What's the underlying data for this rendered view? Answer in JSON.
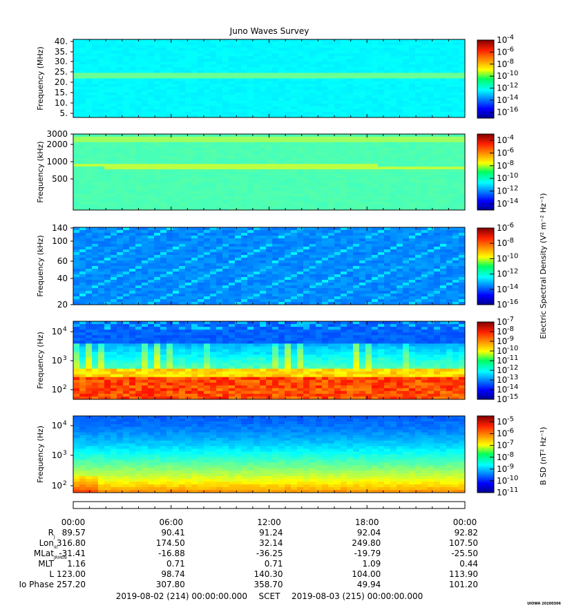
{
  "title": "Juno Waves Survey",
  "watermark": "UIOWA 20200306",
  "chart_data": [
    {
      "type": "heatmap",
      "ylabel": "Frequency (MHz)",
      "ytick_labels": [
        "40.",
        "35.",
        "30.",
        "25.",
        "20.",
        "15.",
        "10.",
        "5."
      ],
      "ylim": [
        3.5,
        41
      ],
      "yscale": "linear",
      "colorbar": {
        "label": "",
        "exponents": [
          "-4",
          "-6",
          "-8",
          "-10",
          "-12",
          "-14",
          "-16"
        ],
        "range_log10": [
          -17,
          -4
        ]
      },
      "feature": "uniform background near 1e-13 with a brighter horizontal band near 21 MHz"
    },
    {
      "type": "heatmap",
      "ylabel": "Frequency (kHz)",
      "ytick_labels": [
        "3000",
        "2000",
        "1000",
        "500"
      ],
      "ylim": [
        120,
        3000
      ],
      "yscale": "log",
      "colorbar": {
        "label": "",
        "exponents": [
          "-4",
          "-6",
          "-8",
          "-10",
          "-12",
          "-14"
        ],
        "range_log10": [
          -15,
          -3
        ]
      },
      "feature": "background near 1e-11 with horizontal bands near 2200 kHz and 800 kHz"
    },
    {
      "type": "heatmap",
      "ylabel": "Frequency (kHz)",
      "ytick_labels": [
        "140",
        "100",
        "60",
        "40",
        "20"
      ],
      "ylim": [
        20,
        140
      ],
      "yscale": "linear",
      "colorbar": {
        "label": "Electric Spectral Density (V² m⁻² Hz⁻¹)",
        "exponents": [
          "-6",
          "-8",
          "-10",
          "-12",
          "-14",
          "-16"
        ],
        "range_log10": [
          -16,
          -6
        ]
      },
      "feature": "low-level background near 1e-14 with diagonal drifting striations"
    },
    {
      "type": "heatmap",
      "ylabel": "Frequency (Hz)",
      "ytick_labels": [
        "10",
        "10",
        "10"
      ],
      "ytick_exponents": [
        "4",
        "3",
        "2"
      ],
      "ylim": [
        50,
        20000
      ],
      "yscale": "log",
      "colorbar": {
        "label": "",
        "exponents": [
          "-7",
          "-8",
          "-9",
          "-10",
          "-11",
          "-12",
          "-13",
          "-14",
          "-15"
        ],
        "range_log10": [
          -15,
          -7
        ]
      },
      "feature": "intense emission below ~300 Hz, spiky bursts up to ~2 kHz, weak above 3 kHz"
    },
    {
      "type": "heatmap",
      "ylabel": "Frequency (Hz)",
      "ytick_labels": [
        "10",
        "10",
        "10"
      ],
      "ytick_exponents": [
        "4",
        "3",
        "2"
      ],
      "ylim": [
        50,
        20000
      ],
      "yscale": "log",
      "colorbar": {
        "label": "B SD (nT² Hz⁻¹)",
        "exponents": [
          "-5",
          "-6",
          "-7",
          "-8",
          "-9",
          "-10",
          "-11"
        ],
        "range_log10": [
          -11,
          -4.5
        ]
      },
      "feature": "magnetic spectral density high at low frequency (~1e-5 to 1e-6), decreasing to ~1e-10 above 5 kHz"
    }
  ],
  "time_axis": {
    "labels": [
      "00:00",
      "06:00",
      "12:00",
      "18:00",
      "00:00"
    ],
    "rows": [
      {
        "label": "R",
        "sub": "J",
        "values": [
          "89.57",
          "90.41",
          "91.24",
          "92.04",
          "92.82"
        ]
      },
      {
        "label": "Lon",
        "sub": "III",
        "values": [
          "316.80",
          "174.50",
          "32.14",
          "249.80",
          "107.50"
        ]
      },
      {
        "label": "MLat",
        "sub": "JRM09",
        "values": [
          "-31.41",
          "-16.88",
          "-36.25",
          "-19.79",
          "-25.50"
        ]
      },
      {
        "label": "MLT",
        "sub": "",
        "values": [
          "1.16",
          "0.71",
          "0.71",
          "1.09",
          "0.44"
        ]
      },
      {
        "label": "L",
        "sub": "",
        "values": [
          "123.00",
          "98.74",
          "140.30",
          "104.00",
          "113.90"
        ]
      },
      {
        "label": "Io Phase",
        "sub": "",
        "values": [
          "257.20",
          "307.80",
          "358.70",
          "49.94",
          "101.20"
        ]
      }
    ],
    "footer": {
      "start": "2019-08-02 (214) 00:00:00.000",
      "scet": "SCET",
      "end": "2019-08-03 (215) 00:00:00.000"
    }
  }
}
